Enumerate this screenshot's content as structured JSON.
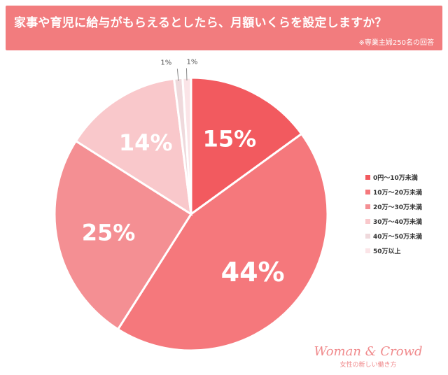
{
  "header": {
    "title": "家事や育児に給与がもらえるとしたら、月額いくらを設定しますか？",
    "note": "※専業主婦250名の回答"
  },
  "colors": {
    "header_bg": "#f27c7e",
    "label_text": "#ffffff",
    "small_label_text": "#555555"
  },
  "chart_data": {
    "type": "pie",
    "title": "家事や育児に給与がもらえるとしたら、月額いくらを設定しますか？",
    "categories": [
      "0円～10万未満",
      "10万～20万未満",
      "20万～30万未満",
      "30万～40万未満",
      "40万～50万未満",
      "50万以上"
    ],
    "values": [
      15,
      44,
      25,
      14,
      1,
      1
    ],
    "labels": [
      "15%",
      "44%",
      "25%",
      "14%",
      "1%",
      "1%"
    ],
    "colors": [
      "#f25a5f",
      "#f5787c",
      "#f48f93",
      "#f9c8cb",
      "#efd9dc",
      "#fbe4e7"
    ],
    "legend_position": "right"
  },
  "brand": {
    "name": "Woman & Crowd",
    "tagline": "女性の新しい働き方"
  }
}
